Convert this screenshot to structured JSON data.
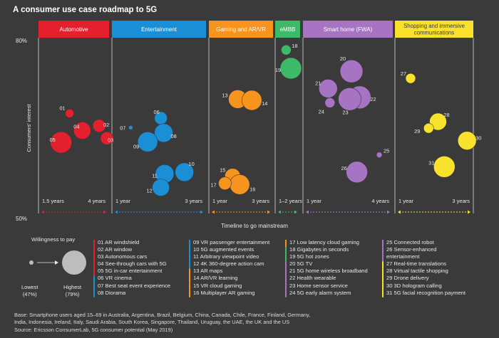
{
  "title": "A consumer use case roadmap to 5G",
  "chart_data": {
    "type": "scatter",
    "y_axis": {
      "label": "Consumers' interest",
      "top_label": "80%",
      "bottom_label": "50%",
      "range": [
        50,
        80
      ]
    },
    "x_axis": {
      "label": "Timeline to go mainstream"
    },
    "categories": [
      {
        "name": "Automotive",
        "color": "#e4202e",
        "start_label": "1.5 years",
        "end_label": "4 years"
      },
      {
        "name": "Entertainment",
        "color": "#1b8fd6",
        "start_label": "1 year",
        "end_label": "3 years"
      },
      {
        "name": "Gaming and AR/VR",
        "color": "#f7941d",
        "start_label": "1 year",
        "end_label": "3 years"
      },
      {
        "name": "eMBB",
        "color": "#3dba68",
        "start_label": "1–2 years",
        "end_label": ""
      },
      {
        "name": "Smart home (FWA)",
        "color": "#a774c4",
        "start_label": "1 year",
        "end_label": "4 years"
      },
      {
        "name": "Shopping and immersive communications",
        "color": "#f8e22c",
        "start_label": "1 year",
        "end_label": "3 years"
      }
    ],
    "points": [
      {
        "id": "01",
        "cat": 0,
        "t": 0.44,
        "interest": 67.6,
        "size": 6
      },
      {
        "id": "02",
        "cat": 0,
        "t": 0.86,
        "interest": 65.5,
        "size": 9
      },
      {
        "id": "03",
        "cat": 0,
        "t": 0.97,
        "interest": 63.4,
        "size": 9
      },
      {
        "id": "04",
        "cat": 0,
        "t": 0.62,
        "interest": 64.7,
        "size": 12
      },
      {
        "id": "05",
        "cat": 0,
        "t": 0.32,
        "interest": 62.7,
        "size": 15
      },
      {
        "id": "06",
        "cat": 1,
        "t": 0.52,
        "interest": 66.8,
        "size": 9
      },
      {
        "id": "07",
        "cat": 1,
        "t": 0.2,
        "interest": 65.2,
        "size": 3
      },
      {
        "id": "08",
        "cat": 1,
        "t": 0.55,
        "interest": 64.3,
        "size": 13
      },
      {
        "id": "09",
        "cat": 1,
        "t": 0.38,
        "interest": 62.8,
        "size": 14
      },
      {
        "id": "10",
        "cat": 1,
        "t": 0.77,
        "interest": 57.7,
        "size": 13
      },
      {
        "id": "11",
        "cat": 1,
        "t": 0.56,
        "interest": 57.4,
        "size": 13
      },
      {
        "id": "12",
        "cat": 1,
        "t": 0.52,
        "interest": 55.1,
        "size": 12
      },
      {
        "id": "13",
        "cat": 2,
        "t": 0.45,
        "interest": 70.0,
        "size": 13
      },
      {
        "id": "14",
        "cat": 2,
        "t": 0.67,
        "interest": 69.8,
        "size": 14
      },
      {
        "id": "15",
        "cat": 2,
        "t": 0.37,
        "interest": 57.0,
        "size": 11
      },
      {
        "id": "16",
        "cat": 2,
        "t": 0.48,
        "interest": 55.6,
        "size": 14
      },
      {
        "id": "17",
        "cat": 2,
        "t": 0.25,
        "interest": 55.8,
        "size": 9
      },
      {
        "id": "18",
        "cat": 3,
        "t": 0.44,
        "interest": 78.3,
        "size": 7
      },
      {
        "id": "19",
        "cat": 3,
        "t": 0.63,
        "interest": 75.2,
        "size": 15
      },
      {
        "id": "20",
        "cat": 4,
        "t": 0.54,
        "interest": 74.7,
        "size": 16
      },
      {
        "id": "21",
        "cat": 4,
        "t": 0.28,
        "interest": 71.8,
        "size": 13
      },
      {
        "id": "22",
        "cat": 4,
        "t": 0.63,
        "interest": 70.3,
        "size": 16
      },
      {
        "id": "23",
        "cat": 4,
        "t": 0.52,
        "interest": 70.0,
        "size": 16
      },
      {
        "id": "24",
        "cat": 4,
        "t": 0.3,
        "interest": 69.4,
        "size": 7
      },
      {
        "id": "25",
        "cat": 4,
        "t": 0.85,
        "interest": 60.6,
        "size": 4
      },
      {
        "id": "26",
        "cat": 4,
        "t": 0.6,
        "interest": 57.7,
        "size": 15
      },
      {
        "id": "27",
        "cat": 5,
        "t": 0.2,
        "interest": 73.5,
        "size": 7
      },
      {
        "id": "28",
        "cat": 5,
        "t": 0.55,
        "interest": 66.2,
        "size": 12
      },
      {
        "id": "29",
        "cat": 5,
        "t": 0.43,
        "interest": 65.1,
        "size": 7
      },
      {
        "id": "30",
        "cat": 5,
        "t": 0.92,
        "interest": 63.0,
        "size": 13
      },
      {
        "id": "31",
        "cat": 5,
        "t": 0.63,
        "interest": 58.6,
        "size": 15
      }
    ]
  },
  "willingness_legend": {
    "title": "Willingness to pay",
    "low_label": "Lowest",
    "low_value": "(47%)",
    "high_label": "Highest",
    "high_value": "(79%)"
  },
  "use_case_legend": [
    {
      "column": 0,
      "items": [
        "01 AR windshield",
        "02 AR window",
        "03 Autonomous cars",
        "04 See-through cars with 5G",
        "05 5G in-car entertainment",
        "06 VR cinema",
        "07 Best seat event experience",
        "08 Diorama"
      ]
    },
    {
      "column": 1,
      "items": [
        "09 VR passenger entertainment",
        "10 5G augmented events",
        "11 Arbitrary viewpoint video",
        "12 4K 360-degree action cam",
        "13 AR maps",
        "14 AR/VR learning",
        "15 VR cloud gaming",
        "16 Multiplayer AR gaming"
      ]
    },
    {
      "column": 2,
      "items": [
        "17 Low latency cloud gaming",
        "18 Gigabytes in seconds",
        "19 5G hot zones",
        "20 5G TV",
        "21 5G home wireless broadband",
        "22 Health wearable",
        "23 Home sensor service",
        "24 5G early alarm system"
      ]
    },
    {
      "column": 3,
      "items": [
        "25 Connected robot",
        "26 Sensor-enhanced",
        "entertainment",
        "27 Real-time translations",
        "28 Virtual tactile shopping",
        "29 Drone delivery",
        "30 3D hologram calling",
        "31 5G facial recognition payment"
      ]
    }
  ],
  "footnote": [
    "Base: Smartphone users aged 15–69 in Australia, Argentina, Brazil, Belgium, China, Canada, Chile, France, Finland, Germany,",
    "India, Indonesia, Ireland, Italy, Saudi Arabia, South Korea, Singapore, Thailand, Uruguay, the UAE, the UK and the US",
    "Source: Ericsson ConsumerLab, 5G consumer potential (May 2019)"
  ]
}
